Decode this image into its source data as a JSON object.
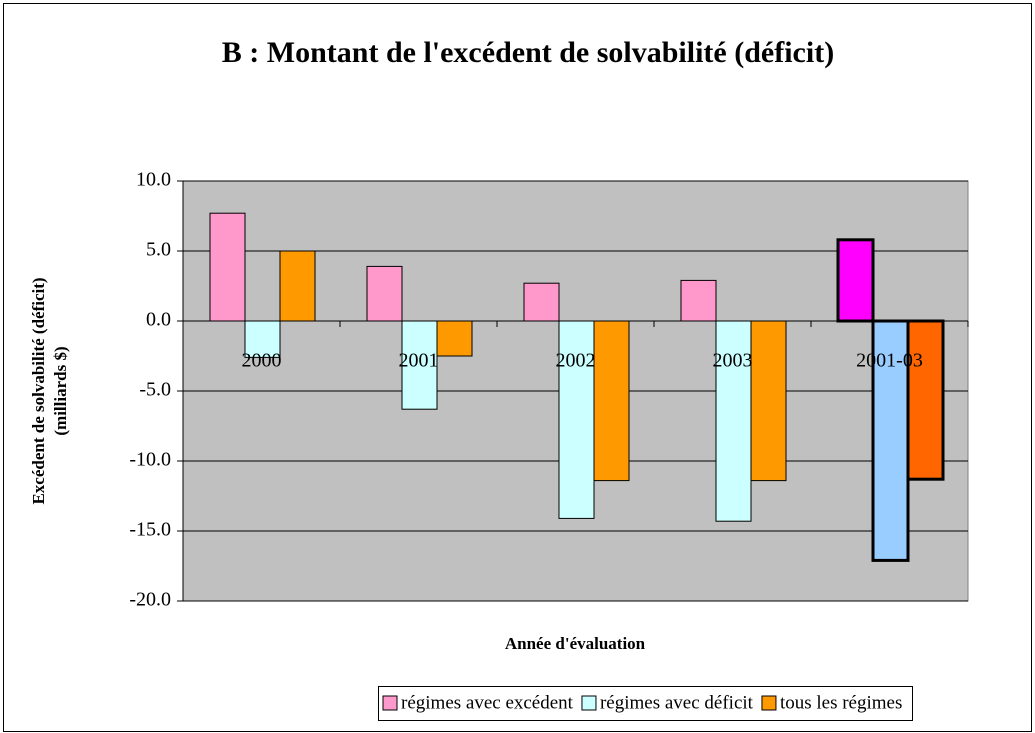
{
  "chart_data": {
    "type": "bar",
    "title": "B : Montant de l'excédent de solvabilité (déficit)",
    "y_label": [
      "Excédent de solvabilité (déficit)",
      "(milliards $)"
    ],
    "x_label": "Année d'évaluation",
    "categories": [
      "2000",
      "2001",
      "2002",
      "2003",
      "2001-03"
    ],
    "series": [
      {
        "name": "régimes avec excédent",
        "color": "#ff99cc",
        "colors": [
          "#ff99cc",
          "#ff99cc",
          "#ff99cc",
          "#ff99cc",
          "#ff00ff"
        ],
        "border_widths": [
          1,
          1,
          1,
          1,
          3
        ],
        "values": [
          7.7,
          3.9,
          2.7,
          2.9,
          5.8
        ]
      },
      {
        "name": "régimes avec déficit",
        "color": "#ccffff",
        "colors": [
          "#ccffff",
          "#ccffff",
          "#ccffff",
          "#ccffff",
          "#99ccff"
        ],
        "border_widths": [
          1,
          1,
          1,
          1,
          3
        ],
        "values": [
          -2.6,
          -6.3,
          -14.1,
          -14.3,
          -17.1
        ]
      },
      {
        "name": "tous les régimes",
        "color": "#ff9900",
        "colors": [
          "#ff9900",
          "#ff9900",
          "#ff9900",
          "#ff9900",
          "#ff6600"
        ],
        "border_widths": [
          1,
          1,
          1,
          1,
          3
        ],
        "values": [
          5.0,
          -2.5,
          -11.4,
          -11.4,
          -11.3
        ]
      }
    ],
    "ylim": [
      -20,
      10
    ],
    "yticks": [
      {
        "value": -20,
        "label": "-20.0"
      },
      {
        "value": -15,
        "label": "-15.0"
      },
      {
        "value": -10,
        "label": "-10.0"
      },
      {
        "value": -5,
        "label": "-5.0"
      },
      {
        "value": 0,
        "label": "0.0"
      },
      {
        "value": 5,
        "label": "5.0"
      },
      {
        "value": 10,
        "label": "10.0"
      }
    ],
    "grid": true,
    "plot_background": "#c0c0c0",
    "legend": "bottom"
  }
}
